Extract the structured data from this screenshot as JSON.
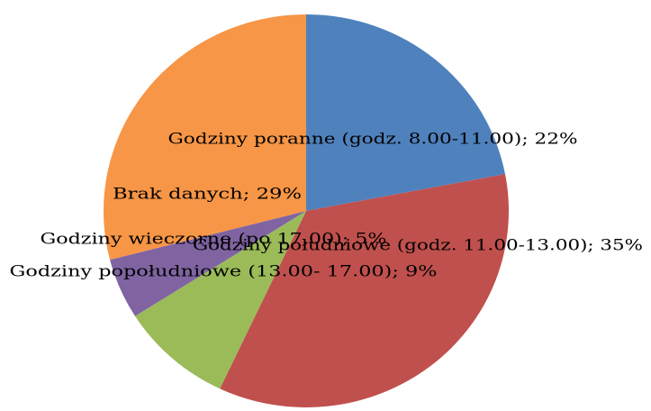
{
  "chart_data": {
    "type": "pie",
    "categories": [
      "Godziny poranne (godz. 8.00-11.00)",
      "Godziny południowe (godz. 11.00-13.00)",
      "Godziny popołudniowe (13.00- 17.00)",
      "Godziny wieczorne (po 17.00)",
      "Brak danych"
    ],
    "values": [
      22,
      35,
      9,
      5,
      29
    ],
    "value_labels": [
      "Godziny poranne (godz. 8.00-11.00); 22%",
      "Godziny południowe (godz. 11.00-13.00); 35%",
      "Godziny popołudniowe (13.00- 17.00); 9%",
      "Godziny wieczorne (po 17.00); 5%",
      "Brak danych; 29%"
    ],
    "colors": [
      "#4f81bd",
      "#c0504d",
      "#9bbb59",
      "#8064a2",
      "#f79646"
    ]
  }
}
